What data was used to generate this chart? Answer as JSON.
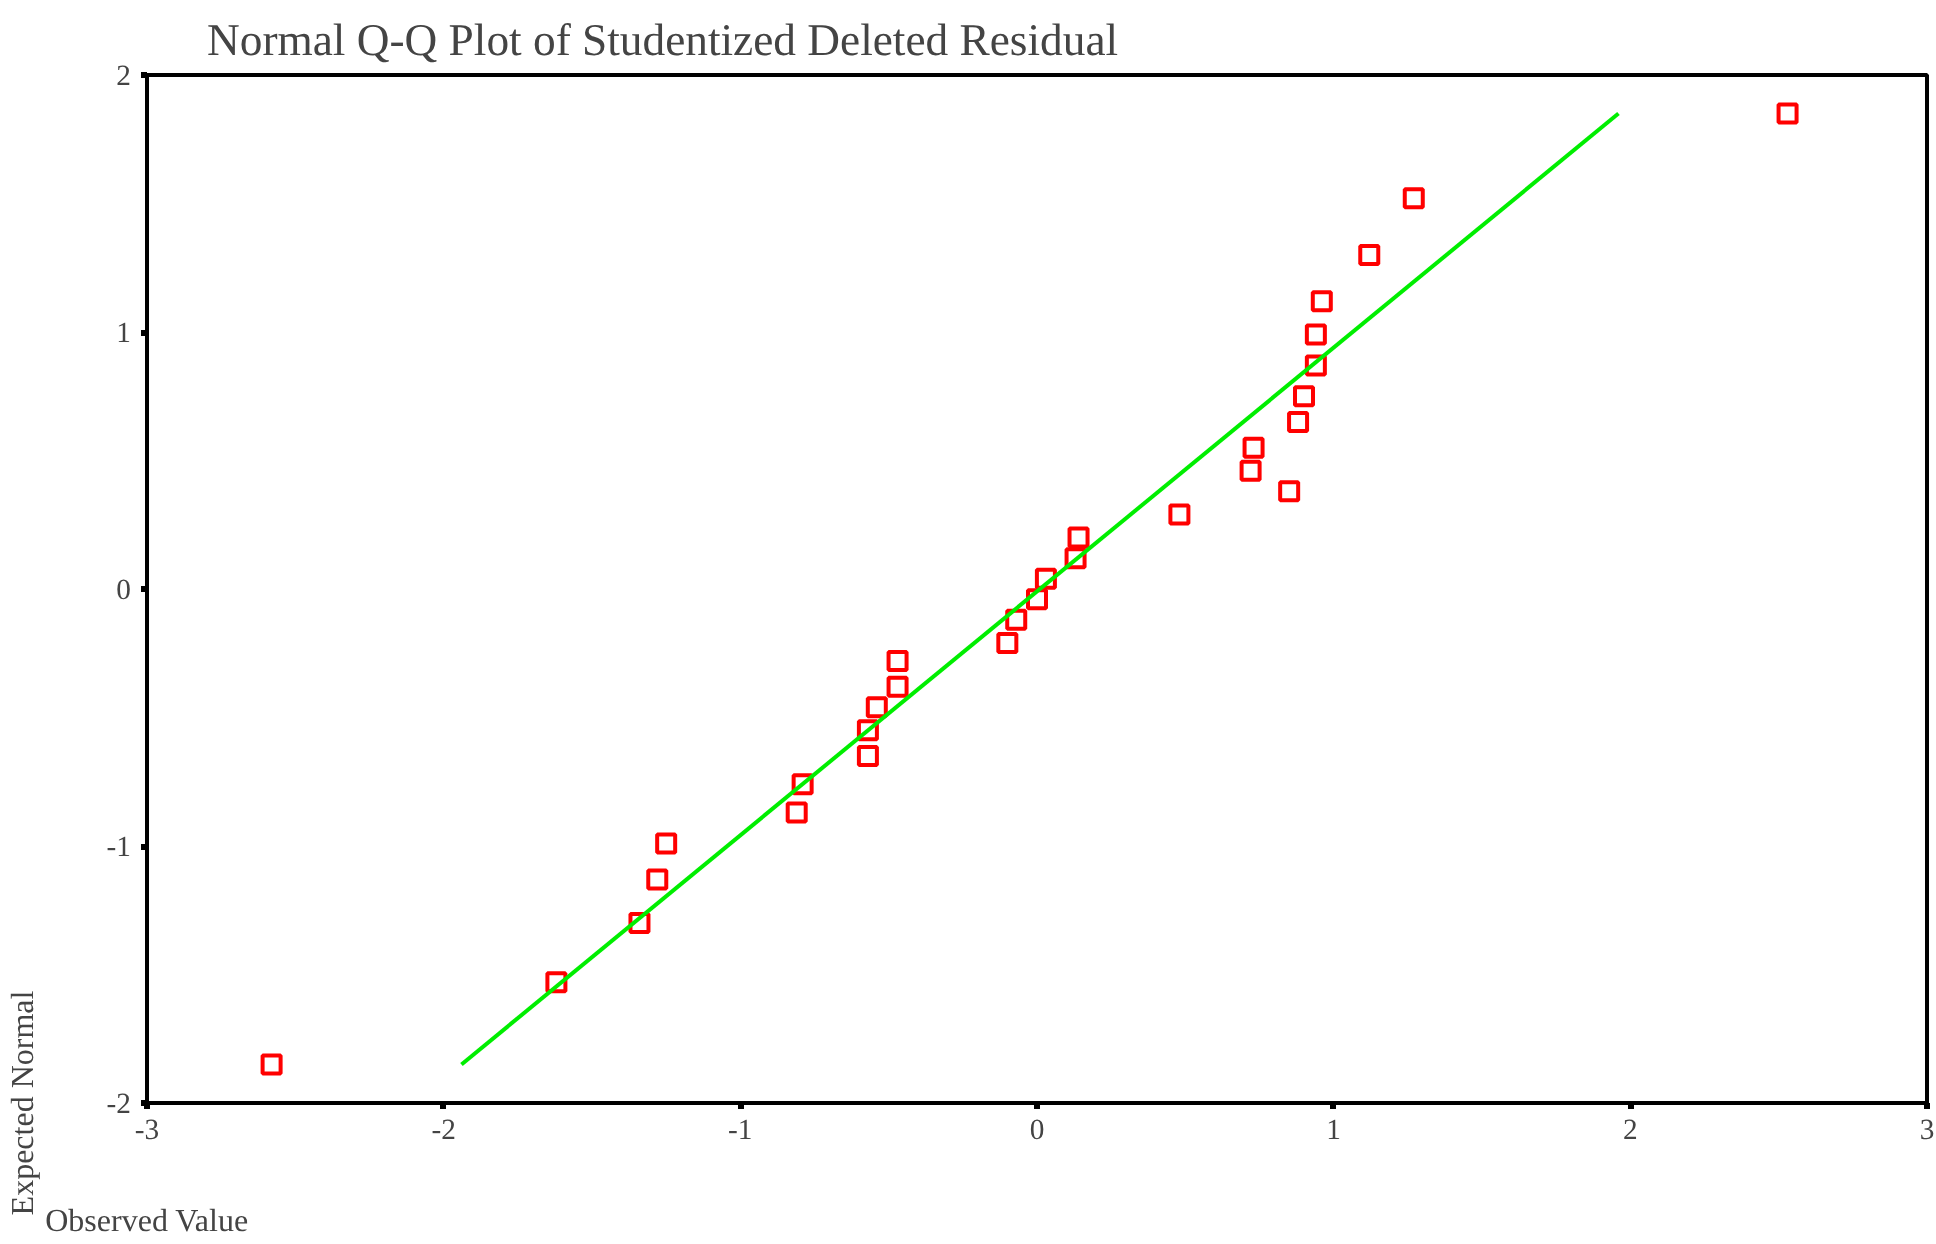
{
  "chart_data": {
    "type": "scatter",
    "title": "Normal Q-Q Plot of Studentized Deleted Residual",
    "xlabel": "Observed Value",
    "ylabel": "Expected Normal",
    "xlim": [
      -3,
      3
    ],
    "ylim": [
      -2,
      2
    ],
    "xticks": [
      -3,
      -2,
      -1,
      0,
      1,
      2,
      3
    ],
    "yticks": [
      -2,
      -1,
      0,
      1,
      2
    ],
    "grid": false,
    "series": [
      {
        "color": "#ff0000",
        "marker": "square",
        "x": [
          -2.58,
          -1.62,
          -1.34,
          -1.28,
          -1.25,
          -0.81,
          -0.79,
          -0.57,
          -0.57,
          -0.54,
          -0.47,
          -0.47,
          -0.1,
          -0.07,
          0.0,
          0.03,
          0.13,
          0.14,
          0.48,
          0.85,
          0.72,
          0.73,
          0.88,
          0.9,
          0.94,
          0.94,
          0.96,
          1.12,
          1.27,
          2.53
        ],
        "values": [
          -1.85,
          -1.53,
          -1.3,
          -1.13,
          -0.99,
          -0.87,
          -0.76,
          -0.65,
          -0.55,
          -0.46,
          -0.38,
          -0.28,
          -0.21,
          -0.12,
          -0.04,
          0.04,
          0.12,
          0.2,
          0.29,
          0.38,
          0.46,
          0.55,
          0.65,
          0.75,
          0.87,
          0.99,
          1.12,
          1.3,
          1.52,
          1.85
        ]
      },
      {
        "type": "line",
        "color": "#00ee00",
        "line_style": "solid",
        "x": [
          -1.94,
          1.96
        ],
        "values": [
          -1.85,
          1.85
        ]
      }
    ]
  }
}
